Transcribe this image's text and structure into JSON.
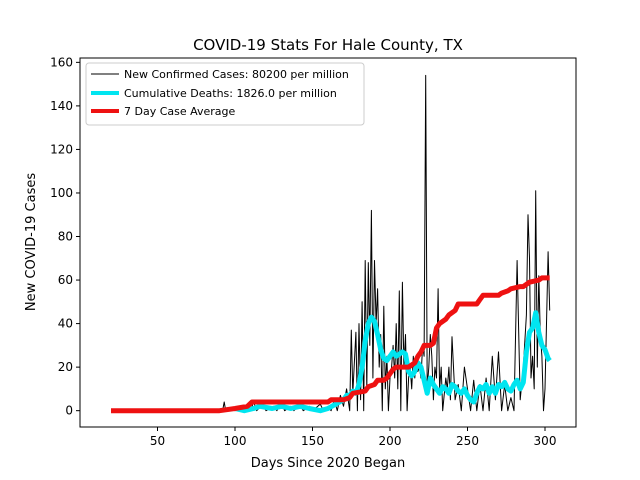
{
  "chart_data": {
    "type": "line",
    "title": "COVID-19 Stats For Hale County, TX",
    "xlabel": "Days Since 2020 Began",
    "ylabel": "New COVID-19 Cases",
    "xlim": [
      0,
      320
    ],
    "ylim": [
      -7.5,
      162
    ],
    "xticks": [
      50,
      100,
      150,
      200,
      250,
      300
    ],
    "yticks": [
      0,
      20,
      40,
      60,
      80,
      100,
      120,
      140,
      160
    ],
    "grid": false,
    "legend_position": "top-left",
    "series": [
      {
        "name": "New Confirmed Cases: 80200 per million",
        "color": "#000000",
        "style": "thin",
        "points": [
          [
            20,
            0
          ],
          [
            92,
            0
          ],
          [
            93,
            4
          ],
          [
            94,
            0
          ],
          [
            98,
            1
          ],
          [
            100,
            0
          ],
          [
            104,
            2
          ],
          [
            106,
            0
          ],
          [
            108,
            3
          ],
          [
            110,
            0
          ],
          [
            112,
            4
          ],
          [
            114,
            0
          ],
          [
            118,
            3
          ],
          [
            120,
            0
          ],
          [
            125,
            2
          ],
          [
            127,
            0
          ],
          [
            130,
            4
          ],
          [
            132,
            0
          ],
          [
            136,
            2
          ],
          [
            138,
            0
          ],
          [
            142,
            3
          ],
          [
            144,
            0
          ],
          [
            148,
            2
          ],
          [
            150,
            0
          ],
          [
            155,
            3
          ],
          [
            157,
            0
          ],
          [
            160,
            2
          ],
          [
            162,
            0
          ],
          [
            164,
            5
          ],
          [
            166,
            0
          ],
          [
            168,
            7
          ],
          [
            170,
            2
          ],
          [
            172,
            10
          ],
          [
            174,
            0
          ],
          [
            175,
            37
          ],
          [
            176,
            8
          ],
          [
            178,
            36
          ],
          [
            179,
            0
          ],
          [
            180,
            40
          ],
          [
            181,
            5
          ],
          [
            182,
            50
          ],
          [
            183,
            0
          ],
          [
            184,
            69
          ],
          [
            185,
            10
          ],
          [
            186,
            68
          ],
          [
            187,
            30
          ],
          [
            188,
            92
          ],
          [
            189,
            15
          ],
          [
            190,
            69
          ],
          [
            191,
            40
          ],
          [
            192,
            56
          ],
          [
            193,
            20
          ],
          [
            194,
            35
          ],
          [
            195,
            0
          ],
          [
            196,
            48
          ],
          [
            197,
            10
          ],
          [
            198,
            25
          ],
          [
            199,
            0
          ],
          [
            200,
            15
          ],
          [
            201,
            20
          ],
          [
            202,
            30
          ],
          [
            203,
            15
          ],
          [
            204,
            40
          ],
          [
            205,
            10
          ],
          [
            206,
            55
          ],
          [
            207,
            0
          ],
          [
            208,
            59
          ],
          [
            209,
            20
          ],
          [
            210,
            35
          ],
          [
            211,
            0
          ],
          [
            212,
            15
          ],
          [
            213,
            20
          ],
          [
            214,
            10
          ],
          [
            215,
            25
          ],
          [
            216,
            15
          ],
          [
            217,
            25
          ],
          [
            218,
            18
          ],
          [
            219,
            20
          ],
          [
            220,
            15
          ],
          [
            221,
            30
          ],
          [
            222,
            25
          ],
          [
            223,
            154
          ],
          [
            224,
            10
          ],
          [
            225,
            20
          ],
          [
            226,
            35
          ],
          [
            227,
            25
          ],
          [
            228,
            5
          ],
          [
            229,
            20
          ],
          [
            230,
            15
          ],
          [
            231,
            56
          ],
          [
            232,
            10
          ],
          [
            233,
            20
          ],
          [
            234,
            0
          ],
          [
            236,
            15
          ],
          [
            237,
            10
          ],
          [
            238,
            20
          ],
          [
            239,
            5
          ],
          [
            240,
            34
          ],
          [
            242,
            5
          ],
          [
            244,
            12
          ],
          [
            246,
            0
          ],
          [
            248,
            20
          ],
          [
            250,
            10
          ],
          [
            252,
            0
          ],
          [
            254,
            14
          ],
          [
            256,
            0
          ],
          [
            258,
            12
          ],
          [
            260,
            0
          ],
          [
            262,
            15
          ],
          [
            264,
            0
          ],
          [
            266,
            25
          ],
          [
            268,
            5
          ],
          [
            270,
            27
          ],
          [
            272,
            0
          ],
          [
            274,
            12
          ],
          [
            276,
            0
          ],
          [
            278,
            6
          ],
          [
            280,
            0
          ],
          [
            282,
            69
          ],
          [
            284,
            5
          ],
          [
            286,
            20
          ],
          [
            288,
            44
          ],
          [
            289,
            90
          ],
          [
            290,
            70
          ],
          [
            291,
            15
          ],
          [
            292,
            25
          ],
          [
            293,
            10
          ],
          [
            294,
            101
          ],
          [
            295,
            20
          ],
          [
            296,
            62
          ],
          [
            297,
            35
          ],
          [
            298,
            25
          ],
          [
            299,
            0
          ],
          [
            300,
            10
          ],
          [
            301,
            40
          ],
          [
            302,
            73
          ],
          [
            303,
            46
          ]
        ]
      },
      {
        "name": "Cumulative Deaths: 1826.0 per million",
        "color": "#00e5f0",
        "style": "thick",
        "points": [
          [
            100,
            1
          ],
          [
            106,
            0
          ],
          [
            112,
            1
          ],
          [
            116,
            2
          ],
          [
            124,
            1
          ],
          [
            130,
            2
          ],
          [
            136,
            1
          ],
          [
            142,
            2
          ],
          [
            148,
            1
          ],
          [
            155,
            0
          ],
          [
            160,
            1
          ],
          [
            165,
            3
          ],
          [
            170,
            5
          ],
          [
            172,
            7
          ],
          [
            174,
            7
          ],
          [
            176,
            9
          ],
          [
            178,
            8
          ],
          [
            180,
            12
          ],
          [
            182,
            20
          ],
          [
            184,
            32
          ],
          [
            186,
            40
          ],
          [
            188,
            43
          ],
          [
            190,
            41
          ],
          [
            192,
            35
          ],
          [
            194,
            28
          ],
          [
            196,
            24
          ],
          [
            198,
            23
          ],
          [
            200,
            25
          ],
          [
            202,
            27
          ],
          [
            204,
            25
          ],
          [
            206,
            26
          ],
          [
            208,
            27
          ],
          [
            210,
            26
          ],
          [
            212,
            18
          ],
          [
            214,
            16
          ],
          [
            216,
            18
          ],
          [
            218,
            22
          ],
          [
            220,
            20
          ],
          [
            222,
            14
          ],
          [
            224,
            8
          ],
          [
            226,
            15
          ],
          [
            228,
            12
          ],
          [
            230,
            10
          ],
          [
            232,
            8
          ],
          [
            234,
            11
          ],
          [
            236,
            10
          ],
          [
            238,
            8
          ],
          [
            240,
            12
          ],
          [
            242,
            11
          ],
          [
            244,
            9
          ],
          [
            246,
            8
          ],
          [
            248,
            10
          ],
          [
            250,
            7
          ],
          [
            252,
            5
          ],
          [
            254,
            4
          ],
          [
            256,
            8
          ],
          [
            258,
            11
          ],
          [
            260,
            10
          ],
          [
            262,
            12
          ],
          [
            264,
            8
          ],
          [
            266,
            11
          ],
          [
            268,
            8
          ],
          [
            270,
            12
          ],
          [
            272,
            11
          ],
          [
            274,
            13
          ],
          [
            276,
            10
          ],
          [
            278,
            9
          ],
          [
            280,
            12
          ],
          [
            282,
            14
          ],
          [
            284,
            10
          ],
          [
            286,
            13
          ],
          [
            288,
            27
          ],
          [
            290,
            36
          ],
          [
            292,
            38
          ],
          [
            294,
            45
          ],
          [
            296,
            36
          ],
          [
            298,
            30
          ],
          [
            300,
            28
          ],
          [
            302,
            24
          ],
          [
            303,
            23
          ]
        ]
      },
      {
        "name": "7 Day Case Average",
        "color": "#ee1111",
        "style": "thick",
        "points": [
          [
            20,
            0
          ],
          [
            90,
            0
          ],
          [
            100,
            1
          ],
          [
            108,
            2
          ],
          [
            111,
            4
          ],
          [
            150,
            4
          ],
          [
            158,
            4
          ],
          [
            160,
            4
          ],
          [
            162,
            5
          ],
          [
            170,
            5
          ],
          [
            174,
            6
          ],
          [
            176,
            8
          ],
          [
            184,
            9
          ],
          [
            186,
            11
          ],
          [
            190,
            12
          ],
          [
            192,
            14
          ],
          [
            196,
            14
          ],
          [
            198,
            15
          ],
          [
            200,
            17
          ],
          [
            202,
            19
          ],
          [
            204,
            20
          ],
          [
            212,
            20
          ],
          [
            214,
            21
          ],
          [
            216,
            22
          ],
          [
            218,
            25
          ],
          [
            220,
            27
          ],
          [
            222,
            30
          ],
          [
            226,
            30
          ],
          [
            228,
            31
          ],
          [
            230,
            38
          ],
          [
            232,
            40
          ],
          [
            236,
            42
          ],
          [
            238,
            44
          ],
          [
            240,
            45
          ],
          [
            242,
            46
          ],
          [
            244,
            49
          ],
          [
            254,
            49
          ],
          [
            256,
            49
          ],
          [
            258,
            51
          ],
          [
            260,
            53
          ],
          [
            270,
            53
          ],
          [
            272,
            54
          ],
          [
            276,
            55
          ],
          [
            278,
            56
          ],
          [
            284,
            57
          ],
          [
            286,
            57
          ],
          [
            290,
            59
          ],
          [
            296,
            60
          ],
          [
            298,
            61
          ],
          [
            303,
            61
          ]
        ]
      }
    ]
  }
}
